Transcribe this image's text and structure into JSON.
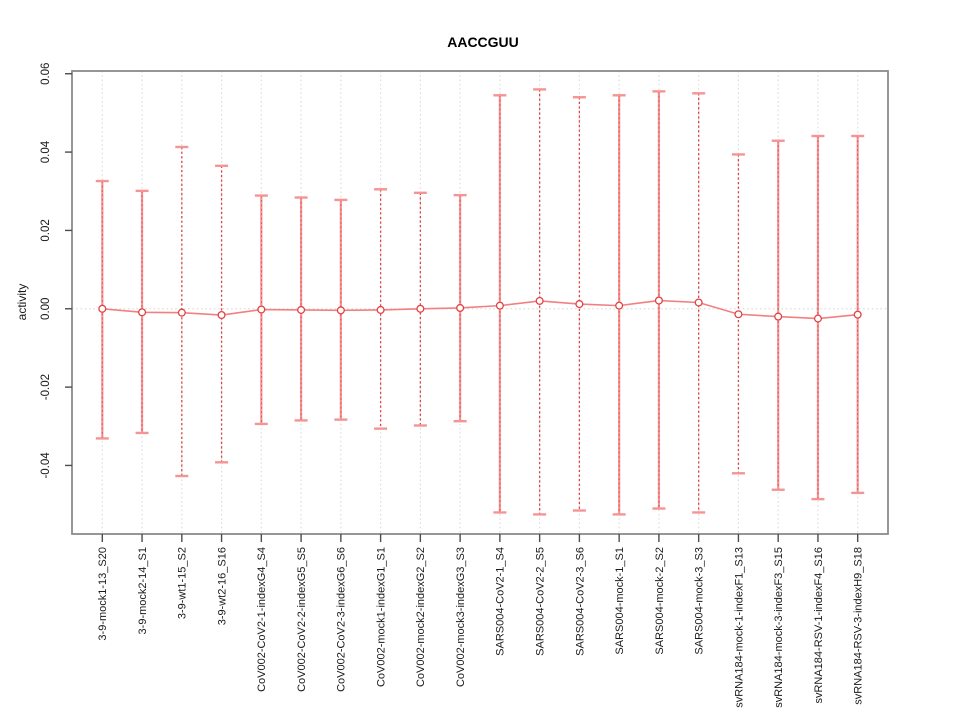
{
  "chart_data": {
    "type": "line",
    "title": "AACCGUU",
    "xlabel": "",
    "ylabel": "activity",
    "ylim": [
      -0.0575,
      0.0607
    ],
    "yticks": [
      -0.04,
      -0.02,
      0.0,
      0.02,
      0.04,
      0.06
    ],
    "ytick_labels": [
      "-0.04",
      "-0.02",
      "0.00",
      "0.02",
      "0.04",
      "0.06"
    ],
    "grid": "dotted vertical line per category, dotted horizontal line at y=0",
    "legend": "none",
    "marker": "open-circle",
    "error_bars": true,
    "categories": [
      "3-9-mock1-13_S20",
      "3-9-mock2-14_S1",
      "3-9-wt1-15_S2",
      "3-9-wt2-16_S16",
      "CoV002-CoV2-1-indexG4_S4",
      "CoV002-CoV2-2-indexG5_S5",
      "CoV002-CoV2-3-indexG6_S6",
      "CoV002-mock1-indexG1_S1",
      "CoV002-mock2-indexG2_S2",
      "CoV002-mock3-indexG3_S3",
      "SARS004-CoV2-1_S4",
      "SARS004-CoV2-2_S5",
      "SARS004-CoV2-3_S6",
      "SARS004-mock-1_S1",
      "SARS004-mock-2_S2",
      "SARS004-mock-3_S3",
      "svRNA184-mock-1-indexF1_S13",
      "svRNA184-mock-3-indexF3_S15",
      "svRNA184-RSV-1-indexF4_S16",
      "svRNA184-RSV-3-indexH9_S18"
    ],
    "series": [
      {
        "name": "activity",
        "values": [
          0.0,
          -0.0009,
          -0.001,
          -0.0016,
          -0.0002,
          -0.0003,
          -0.0004,
          -0.0003,
          0.0,
          0.0002,
          0.0008,
          0.002,
          0.0012,
          0.0008,
          0.0021,
          0.0016,
          -0.0014,
          -0.002,
          -0.0025,
          -0.0015
        ],
        "err_hi": [
          0.0326,
          0.0301,
          0.0413,
          0.0365,
          0.0289,
          0.0284,
          0.0278,
          0.0305,
          0.0296,
          0.029,
          0.0545,
          0.056,
          0.054,
          0.0545,
          0.0555,
          0.055,
          0.0394,
          0.0429,
          0.0441,
          0.0441
        ],
        "err_lo": [
          -0.0331,
          -0.0317,
          -0.0427,
          -0.0392,
          -0.0294,
          -0.0285,
          -0.0283,
          -0.0306,
          -0.0298,
          -0.0287,
          -0.052,
          -0.0525,
          -0.0515,
          -0.0525,
          -0.051,
          -0.052,
          -0.042,
          -0.0462,
          -0.0486,
          -0.047
        ],
        "bar_style": [
          "solid",
          "solid",
          "dashed",
          "dashed",
          "solid",
          "solid",
          "solid",
          "dashed",
          "dashed",
          "solid",
          "solid",
          "dashed",
          "dashed",
          "solid",
          "solid",
          "dashed",
          "dashed",
          "solid",
          "solid",
          "solid"
        ]
      }
    ],
    "colors": {
      "point_stroke": "#e04343",
      "bar_solid": "#f59494",
      "bar_dashed": "#dd4444",
      "cap": "#f59494",
      "connect_line": "#f28080",
      "grid": "#dcdcdc",
      "axis_box": "#8a8a8a",
      "tick": "#4d4d4d",
      "text": "#1a1a1a"
    }
  }
}
